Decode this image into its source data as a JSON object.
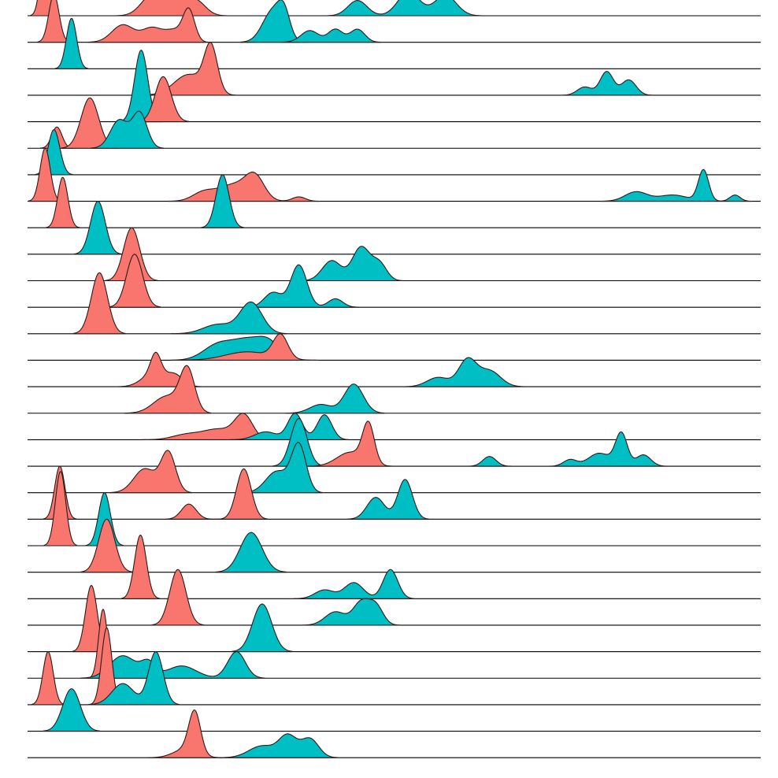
{
  "chart_data": {
    "type": "ridgeline",
    "title": "",
    "xlabel": "",
    "ylabel": "",
    "xlim": [
      0,
      100
    ],
    "row_count": 29,
    "grid": false,
    "legend": "none",
    "colors": {
      "red": "#F8766D",
      "teal": "#00BFC4",
      "line": "#000000"
    },
    "series": [
      {
        "name": "red",
        "color": "#F8766D"
      },
      {
        "name": "teal",
        "color": "#00BFC4"
      }
    ],
    "ridges": [
      {
        "row": 0,
        "series": "red",
        "components": [
          [
            17,
            1.5,
            1.0
          ],
          [
            20,
            1.5,
            0.9
          ],
          [
            23,
            1.3,
            0.7
          ]
        ],
        "height": 0.9
      },
      {
        "row": 0,
        "series": "teal",
        "components": [
          [
            45,
            1.3,
            0.45
          ],
          [
            52,
            1.5,
            0.7
          ],
          [
            57,
            1.5,
            0.6
          ]
        ],
        "height": 0.9
      },
      {
        "row": 0,
        "series": "red",
        "components": [
          [
            2.3,
            0.6,
            1.0
          ]
        ],
        "height": 2.2
      },
      {
        "row": 1,
        "series": "red",
        "components": [
          [
            13,
            1.5,
            0.55
          ],
          [
            17,
            1.4,
            0.45
          ],
          [
            20,
            1.2,
            0.35
          ],
          [
            22,
            0.8,
            1.0
          ]
        ],
        "height": 1.3
      },
      {
        "row": 1,
        "series": "teal",
        "components": [
          [
            33.5,
            1.4,
            0.9
          ],
          [
            35,
            0.8,
            0.6
          ]
        ],
        "height": 1.6
      },
      {
        "row": 1,
        "series": "teal",
        "components": [
          [
            38.5,
            1.2,
            0.45
          ],
          [
            42,
            1.0,
            0.5
          ],
          [
            45,
            1.0,
            0.5
          ]
        ],
        "height": 0.5
      },
      {
        "row": 1,
        "series": "red",
        "components": [
          [
            3.6,
            0.7,
            1.0
          ]
        ],
        "height": 1.8
      },
      {
        "row": 2,
        "series": "teal",
        "components": [
          [
            6,
            0.7,
            1.0
          ]
        ],
        "height": 1.9
      },
      {
        "row": 3,
        "series": "red",
        "components": [
          [
            22,
            2.0,
            0.45
          ],
          [
            25,
            0.9,
            1.0
          ]
        ],
        "height": 2.0
      },
      {
        "row": 3,
        "series": "teal",
        "components": [
          [
            76,
            1.0,
            0.35
          ],
          [
            79,
            0.9,
            1.0
          ],
          [
            82,
            1.0,
            0.65
          ]
        ],
        "height": 0.9
      },
      {
        "row": 4,
        "series": "teal",
        "components": [
          [
            15.5,
            0.9,
            1.0
          ]
        ],
        "height": 2.7
      },
      {
        "row": 4,
        "series": "red",
        "components": [
          [
            18.5,
            1.1,
            1.0
          ]
        ],
        "height": 1.7
      },
      {
        "row": 5,
        "series": "red",
        "components": [
          [
            4,
            0.7,
            1.0
          ]
        ],
        "height": 0.8
      },
      {
        "row": 5,
        "series": "red",
        "components": [
          [
            8.5,
            1.2,
            1.0
          ]
        ],
        "height": 1.9
      },
      {
        "row": 5,
        "series": "teal",
        "components": [
          [
            12.5,
            1.2,
            0.8
          ],
          [
            15.3,
            1.0,
            1.0
          ]
        ],
        "height": 1.4
      },
      {
        "row": 6,
        "series": "teal",
        "components": [
          [
            3.6,
            0.8,
            1.0
          ]
        ],
        "height": 1.7
      },
      {
        "row": 7,
        "series": "red",
        "components": [
          [
            2.4,
            0.7,
            1.0
          ]
        ],
        "height": 2.0
      },
      {
        "row": 7,
        "series": "red",
        "components": [
          [
            24,
            1.5,
            0.3
          ],
          [
            28,
            2.0,
            0.55
          ],
          [
            31,
            1.3,
            0.8
          ],
          [
            37,
            0.9,
            0.15
          ]
        ],
        "height": 1.1
      },
      {
        "row": 7,
        "series": "teal",
        "components": [
          [
            83,
            1.5,
            0.3
          ],
          [
            88,
            2.0,
            0.2
          ],
          [
            92.2,
            0.7,
            1.0
          ],
          [
            96.5,
            0.7,
            0.2
          ]
        ],
        "height": 1.2
      },
      {
        "row": 8,
        "series": "red",
        "components": [
          [
            4.8,
            0.7,
            1.0
          ]
        ],
        "height": 1.9
      },
      {
        "row": 8,
        "series": "teal",
        "components": [
          [
            26.6,
            0.9,
            1.0
          ]
        ],
        "height": 2.0
      },
      {
        "row": 9,
        "series": "teal",
        "components": [
          [
            9.6,
            1.0,
            1.0
          ]
        ],
        "height": 2.0
      },
      {
        "row": 10,
        "series": "red",
        "components": [
          [
            14.2,
            1.1,
            1.0
          ]
        ],
        "height": 2.0
      },
      {
        "row": 10,
        "series": "teal",
        "components": [
          [
            41.5,
            1.3,
            0.6
          ],
          [
            45.5,
            1.2,
            1.0
          ],
          [
            48,
            1.0,
            0.5
          ]
        ],
        "height": 1.3
      },
      {
        "row": 11,
        "series": "red",
        "components": [
          [
            14.6,
            1.1,
            1.0
          ]
        ],
        "height": 2.0
      },
      {
        "row": 11,
        "series": "teal",
        "components": [
          [
            33.5,
            1.2,
            0.35
          ],
          [
            37,
            1.1,
            1.0
          ],
          [
            42,
            1.0,
            0.2
          ]
        ],
        "height": 1.6
      },
      {
        "row": 12,
        "series": "red",
        "components": [
          [
            9.8,
            1.1,
            1.0
          ]
        ],
        "height": 2.3
      },
      {
        "row": 12,
        "series": "teal",
        "components": [
          [
            26,
            2.0,
            0.3
          ],
          [
            30.5,
            1.5,
            1.0
          ]
        ],
        "height": 1.2
      },
      {
        "row": 13,
        "series": "teal",
        "components": [
          [
            26,
            2.0,
            0.7
          ],
          [
            30,
            2.0,
            0.85
          ],
          [
            33,
            1.5,
            0.7
          ]
        ],
        "height": 0.9
      },
      {
        "row": 13,
        "series": "red",
        "components": [
          [
            30,
            3.0,
            0.3
          ],
          [
            34.5,
            1.0,
            0.85
          ]
        ],
        "height": 1.0
      },
      {
        "row": 14,
        "series": "red",
        "components": [
          [
            17,
            1.5,
            0.55
          ],
          [
            17.5,
            0.7,
            1.0
          ],
          [
            20,
            1.2,
            0.55
          ]
        ],
        "height": 1.3
      },
      {
        "row": 14,
        "series": "teal",
        "components": [
          [
            56,
            1.5,
            0.35
          ],
          [
            60,
            1.2,
            1.0
          ],
          [
            63,
            1.5,
            0.6
          ]
        ],
        "height": 1.1
      },
      {
        "row": 15,
        "series": "red",
        "components": [
          [
            19,
            1.8,
            0.4
          ],
          [
            21.8,
            1.0,
            1.0
          ]
        ],
        "height": 1.8
      },
      {
        "row": 15,
        "series": "teal",
        "components": [
          [
            40,
            1.5,
            0.3
          ],
          [
            44.5,
            1.3,
            1.0
          ]
        ],
        "height": 1.1
      },
      {
        "row": 16,
        "series": "red",
        "components": [
          [
            21.5,
            1.8,
            0.2
          ],
          [
            26,
            2.2,
            0.45
          ],
          [
            29.5,
            1.2,
            1.0
          ]
        ],
        "height": 1.0
      },
      {
        "row": 16,
        "series": "teal",
        "components": [
          [
            32.5,
            1.5,
            0.3
          ],
          [
            36.5,
            1.0,
            1.0
          ],
          [
            40.5,
            1.0,
            0.95
          ]
        ],
        "height": 1.0
      },
      {
        "row": 17,
        "series": "teal",
        "components": [
          [
            37,
            1.1,
            1.0
          ]
        ],
        "height": 1.8
      },
      {
        "row": 17,
        "series": "red",
        "components": [
          [
            44,
            1.8,
            0.35
          ],
          [
            46.5,
            0.8,
            1.0
          ]
        ],
        "height": 1.7
      },
      {
        "row": 17,
        "series": "teal",
        "components": [
          [
            63,
            0.9,
            0.3
          ],
          [
            74,
            0.9,
            0.2
          ],
          [
            78,
            1.5,
            0.4
          ],
          [
            81,
            0.8,
            1.0
          ],
          [
            84,
            1.0,
            0.35
          ]
        ],
        "height": 1.3
      },
      {
        "row": 18,
        "series": "red",
        "components": [
          [
            16,
            1.5,
            0.6
          ],
          [
            19.2,
            1.0,
            1.0
          ]
        ],
        "height": 1.6
      },
      {
        "row": 18,
        "series": "teal",
        "components": [
          [
            34,
            1.5,
            0.45
          ],
          [
            37,
            1.0,
            1.0
          ]
        ],
        "height": 1.9
      },
      {
        "row": 19,
        "series": "red",
        "components": [
          [
            4.4,
            0.7,
            1.0
          ]
        ],
        "height": 2.0
      },
      {
        "row": 19,
        "series": "red",
        "components": [
          [
            22,
            1.0,
            0.3
          ],
          [
            29.5,
            1.0,
            1.0
          ]
        ],
        "height": 1.9
      },
      {
        "row": 19,
        "series": "teal",
        "components": [
          [
            47.5,
            1.2,
            0.55
          ],
          [
            51.5,
            1.0,
            1.0
          ]
        ],
        "height": 1.5
      },
      {
        "row": 20,
        "series": "red",
        "components": [
          [
            4.5,
            0.7,
            1.0
          ]
        ],
        "height": 2.8
      },
      {
        "row": 20,
        "series": "teal",
        "components": [
          [
            10.5,
            0.8,
            1.0
          ]
        ],
        "height": 2.0
      },
      {
        "row": 21,
        "series": "red",
        "components": [
          [
            10.8,
            1.1,
            1.0
          ]
        ],
        "height": 2.0
      },
      {
        "row": 21,
        "series": "teal",
        "components": [
          [
            30.5,
            1.5,
            1.0
          ]
        ],
        "height": 1.5
      },
      {
        "row": 22,
        "series": "red",
        "components": [
          [
            15.4,
            0.8,
            1.0
          ]
        ],
        "height": 2.4
      },
      {
        "row": 22,
        "series": "teal",
        "components": [
          [
            40.5,
            1.3,
            0.3
          ],
          [
            44.5,
            1.3,
            0.55
          ],
          [
            49.5,
            1.0,
            1.0
          ]
        ],
        "height": 1.1
      },
      {
        "row": 23,
        "series": "red",
        "components": [
          [
            20.5,
            1.1,
            1.0
          ]
        ],
        "height": 2.1
      },
      {
        "row": 23,
        "series": "teal",
        "components": [
          [
            42,
            1.4,
            0.6
          ],
          [
            45.5,
            1.1,
            1.0
          ],
          [
            47.5,
            1.0,
            0.85
          ]
        ],
        "height": 1.0
      },
      {
        "row": 24,
        "series": "red",
        "components": [
          [
            8.7,
            0.8,
            1.0
          ]
        ],
        "height": 2.5
      },
      {
        "row": 24,
        "series": "teal",
        "components": [
          [
            32,
            1.3,
            1.0
          ]
        ],
        "height": 1.8
      },
      {
        "row": 25,
        "series": "red",
        "components": [
          [
            10.3,
            0.6,
            1.0
          ]
        ],
        "height": 2.6
      },
      {
        "row": 25,
        "series": "teal",
        "components": [
          [
            13,
            1.8,
            0.55
          ],
          [
            16.5,
            1.0,
            0.35
          ],
          [
            21,
            2.0,
            0.3
          ],
          [
            28.5,
            1.2,
            0.65
          ]
        ],
        "height": 1.0
      },
      {
        "row": 26,
        "series": "red",
        "components": [
          [
            2.8,
            0.7,
            1.0
          ]
        ],
        "height": 2.0
      },
      {
        "row": 26,
        "series": "red",
        "components": [
          [
            10.8,
            0.7,
            1.0
          ]
        ],
        "height": 2.9
      },
      {
        "row": 26,
        "series": "teal",
        "components": [
          [
            13,
            1.5,
            0.4
          ],
          [
            17.5,
            1.0,
            1.0
          ]
        ],
        "height": 2.0
      },
      {
        "row": 27,
        "series": "teal",
        "components": [
          [
            6,
            1.2,
            1.0
          ]
        ],
        "height": 1.6
      },
      {
        "row": 28,
        "series": "red",
        "components": [
          [
            21.5,
            1.6,
            0.2
          ],
          [
            22.8,
            0.8,
            1.0
          ]
        ],
        "height": 1.8
      },
      {
        "row": 28,
        "series": "teal",
        "components": [
          [
            32,
            1.8,
            0.5
          ],
          [
            35.5,
            1.2,
            0.9
          ],
          [
            38.5,
            1.2,
            0.8
          ]
        ],
        "height": 0.9
      }
    ]
  }
}
